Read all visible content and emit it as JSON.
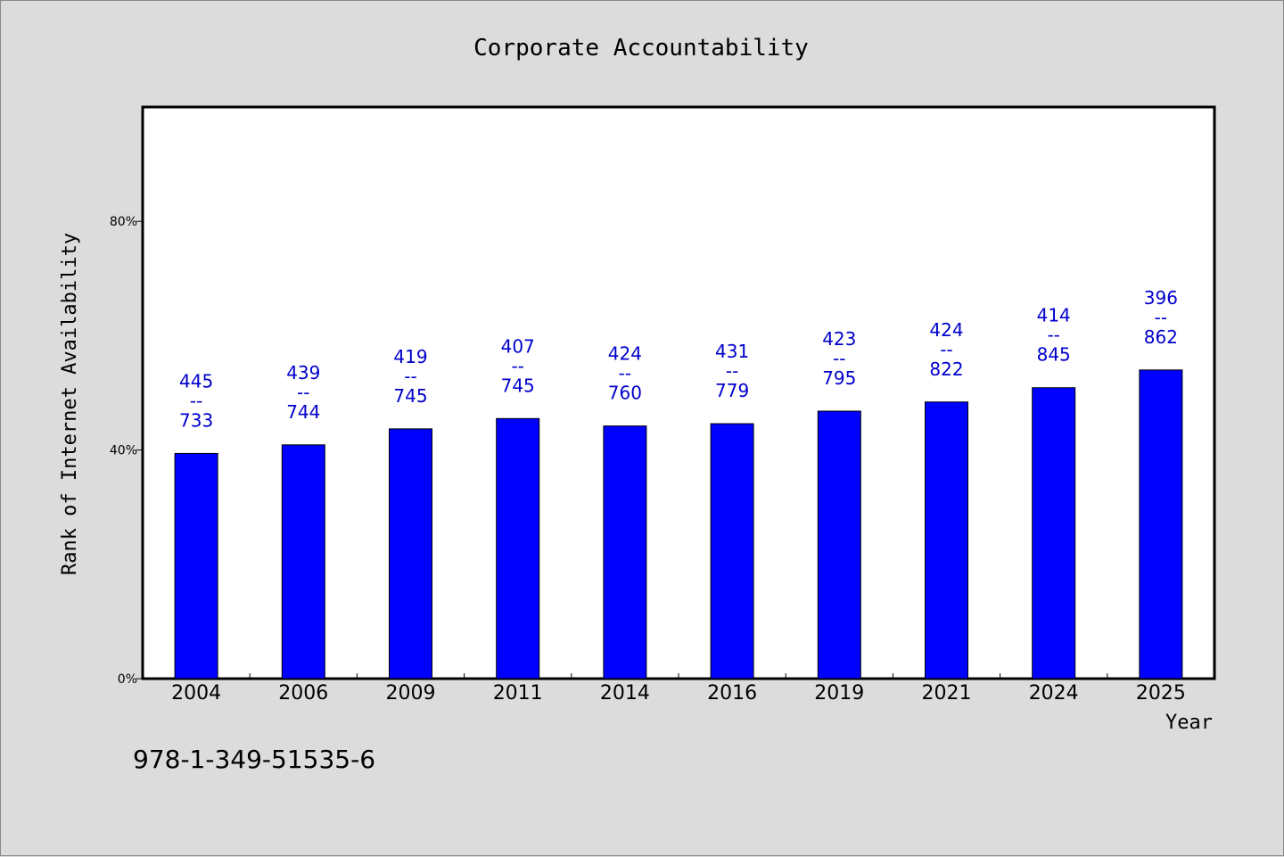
{
  "colors": {
    "background": "#dcdcdc",
    "plot_background": "#ffffff",
    "bar_fill": "#0000ff",
    "data_label": "#0000cc",
    "axis": "#000000"
  },
  "footnote": "978-1-349-51535-6",
  "chart_data": {
    "type": "bar",
    "title": "Corporate Accountability",
    "xlabel": "Year",
    "ylabel": "Rank of Internet Availability",
    "categories": [
      "2004",
      "2006",
      "2009",
      "2011",
      "2014",
      "2016",
      "2019",
      "2021",
      "2024",
      "2025"
    ],
    "series": [
      {
        "values": [
          39.4,
          40.9,
          43.7,
          45.5,
          44.2,
          44.6,
          46.8,
          48.4,
          50.9,
          54.0
        ]
      }
    ],
    "data_labels": [
      [
        "445",
        "--",
        "733"
      ],
      [
        "439",
        "--",
        "744"
      ],
      [
        "419",
        "--",
        "745"
      ],
      [
        "407",
        "--",
        "745"
      ],
      [
        "424",
        "--",
        "760"
      ],
      [
        "431",
        "--",
        "779"
      ],
      [
        "423",
        "--",
        "795"
      ],
      [
        "424",
        "--",
        "822"
      ],
      [
        "414",
        "--",
        "845"
      ],
      [
        "396",
        "--",
        "862"
      ]
    ],
    "ylim": [
      0,
      100
    ],
    "yticks": [
      0,
      40,
      80
    ],
    "ytick_labels": [
      "0%",
      "40%",
      "80%"
    ],
    "grid": false,
    "legend": "none"
  }
}
